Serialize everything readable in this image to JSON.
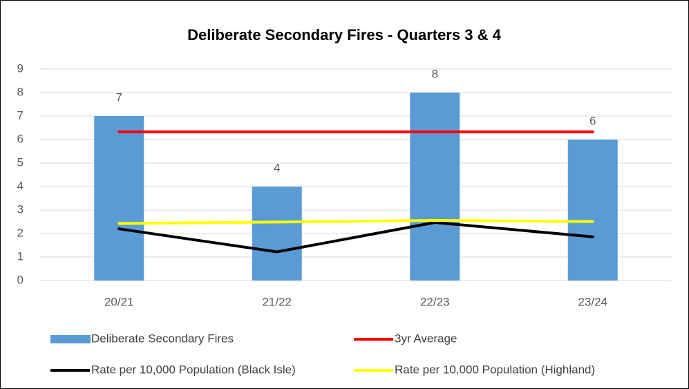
{
  "chart_data": {
    "type": "bar",
    "title": "Deliberate Secondary Fires - Quarters 3 & 4",
    "categories": [
      "20/21",
      "21/22",
      "22/23",
      "23/24"
    ],
    "series": [
      {
        "name": "Deliberate Secondary Fires",
        "type": "bar",
        "color": "#5b9bd5",
        "values": [
          7,
          4,
          8,
          6
        ]
      },
      {
        "name": "3yr Average",
        "type": "line",
        "color": "#ff0000",
        "values": [
          6.33,
          6.33,
          6.33,
          6.33
        ]
      },
      {
        "name": "Rate per 10,000 Population (Black Isle)",
        "type": "line",
        "color": "#000000",
        "values": [
          2.2,
          1.22,
          2.47,
          1.86
        ]
      },
      {
        "name": "Rate per 10,000 Population (Highland)",
        "type": "line",
        "color": "#ffff00",
        "values": [
          2.43,
          2.49,
          2.56,
          2.51
        ]
      }
    ],
    "data_labels": [
      0
    ],
    "ylim": [
      0,
      9
    ],
    "yticks": [
      0,
      1,
      2,
      3,
      4,
      5,
      6,
      7,
      8,
      9
    ],
    "grid": true,
    "legend": "bottom"
  }
}
